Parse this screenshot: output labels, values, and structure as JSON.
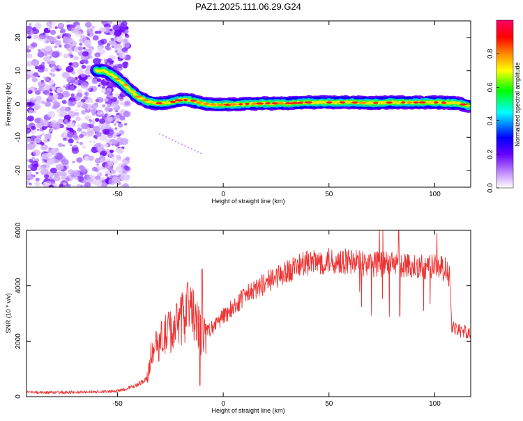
{
  "title": "PAZ1.2025.111.06.29.G24",
  "chart_data": [
    {
      "type": "heatmap",
      "xlabel": "Height of straight line (km)",
      "ylabel": "Frequency (Hz)",
      "xlim": [
        -93,
        117
      ],
      "ylim": [
        -25,
        25
      ],
      "x_ticks": [
        -50,
        0,
        50,
        100
      ],
      "y_ticks": [
        -20,
        -10,
        0,
        10,
        20
      ],
      "colorbar": {
        "label": "Normalized spectral amplitude",
        "range": [
          0,
          1
        ],
        "ticks": [
          "0.0",
          "0.2",
          "0.4",
          "0.6",
          "0.8"
        ],
        "colors": [
          "#ffffff",
          "#cc99ff",
          "#6600ff",
          "#0000ff",
          "#00ffff",
          "#00ff00",
          "#ffff00",
          "#ff8800",
          "#ff0000",
          "#ff0066"
        ]
      },
      "ridge": {
        "x": [
          -60,
          -56,
          -52,
          -48,
          -44,
          -40,
          -36,
          -32,
          -28,
          -24,
          -20,
          -16,
          -12,
          -8,
          -4,
          0,
          10,
          20,
          30,
          40,
          50,
          60,
          70,
          80,
          90,
          100,
          110,
          116
        ],
        "y": [
          10,
          10,
          8.5,
          6.5,
          4,
          2,
          0.8,
          0.2,
          0.3,
          0.7,
          1.3,
          1.2,
          0.5,
          0,
          -0.2,
          -0.2,
          0,
          0.2,
          0.2,
          0.5,
          0.5,
          0.5,
          0.3,
          0.5,
          0.5,
          0.5,
          0.3,
          -0.5
        ]
      }
    },
    {
      "type": "line",
      "xlabel": "Height of straight line (km)",
      "ylabel": "SNR (10 * v/v)",
      "xlim": [
        -93,
        117
      ],
      "ylim": [
        0,
        6000
      ],
      "x_ticks": [
        -50,
        0,
        50,
        100
      ],
      "y_ticks": [
        0,
        2000,
        4000,
        6000
      ],
      "color": "#ee3333",
      "series": [
        {
          "x": [
            -93,
            -80,
            -60,
            -50,
            -45,
            -40,
            -36,
            -34,
            -30,
            -25,
            -20,
            -16,
            -12,
            -10,
            -5,
            0,
            10,
            20,
            30,
            35,
            40,
            50,
            60,
            70,
            80,
            90,
            100,
            105,
            107,
            108,
            110,
            117
          ],
          "y": [
            150,
            150,
            170,
            200,
            300,
            450,
            650,
            1600,
            2000,
            2400,
            2700,
            3300,
            2500,
            2200,
            2500,
            2900,
            3600,
            4100,
            4500,
            4700,
            4800,
            4900,
            4850,
            4800,
            4750,
            4700,
            4700,
            4600,
            4300,
            2500,
            2400,
            2300
          ]
        }
      ]
    }
  ]
}
